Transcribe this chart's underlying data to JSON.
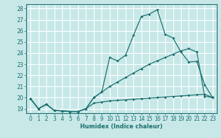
{
  "xlabel": "Humidex (Indice chaleur)",
  "xlim": [
    -0.5,
    23.5
  ],
  "ylim": [
    18.6,
    28.4
  ],
  "xticks": [
    0,
    1,
    2,
    3,
    4,
    5,
    6,
    7,
    8,
    9,
    10,
    11,
    12,
    13,
    14,
    15,
    16,
    17,
    18,
    19,
    20,
    21,
    22,
    23
  ],
  "yticks": [
    19,
    20,
    21,
    22,
    23,
    24,
    25,
    26,
    27,
    28
  ],
  "background_color": "#c8e8e8",
  "grid_color": "#ffffff",
  "line_color": "#1a6e6e",
  "line1_x": [
    0,
    1,
    2,
    3,
    4,
    5,
    6,
    7,
    8,
    9,
    10,
    11,
    12,
    13,
    14,
    15,
    16,
    17,
    18,
    19,
    20,
    21,
    22,
    23
  ],
  "line1_y": [
    19.9,
    19.0,
    19.4,
    18.85,
    18.8,
    18.75,
    18.75,
    19.0,
    19.5,
    19.6,
    19.7,
    19.75,
    19.8,
    19.85,
    19.9,
    19.95,
    20.0,
    20.05,
    20.1,
    20.15,
    20.2,
    20.25,
    20.3,
    20.0
  ],
  "line2_x": [
    0,
    1,
    2,
    3,
    4,
    5,
    6,
    7,
    8,
    9,
    10,
    11,
    12,
    13,
    14,
    15,
    16,
    17,
    18,
    19,
    20,
    21,
    22,
    23
  ],
  "line2_y": [
    19.9,
    19.0,
    19.4,
    18.85,
    18.8,
    18.75,
    18.75,
    19.0,
    20.0,
    20.5,
    21.0,
    21.4,
    21.8,
    22.2,
    22.6,
    23.0,
    23.3,
    23.6,
    23.9,
    24.2,
    24.4,
    24.1,
    20.1,
    20.0
  ],
  "line3_x": [
    0,
    1,
    2,
    3,
    4,
    5,
    6,
    7,
    8,
    9,
    10,
    11,
    12,
    13,
    14,
    15,
    16,
    17,
    18,
    19,
    20,
    21,
    22,
    23
  ],
  "line3_y": [
    19.9,
    19.0,
    19.4,
    18.85,
    18.8,
    18.75,
    18.75,
    19.0,
    20.0,
    20.5,
    23.6,
    23.3,
    23.8,
    25.6,
    27.3,
    27.5,
    27.9,
    25.7,
    25.35,
    24.1,
    23.2,
    23.25,
    21.15,
    20.0
  ]
}
